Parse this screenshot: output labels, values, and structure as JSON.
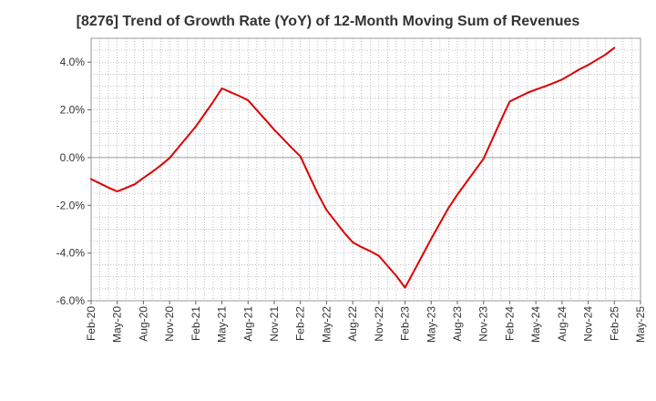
{
  "chart_data": {
    "type": "line",
    "title": "[8276]  Trend of Growth Rate (YoY) of 12-Month Moving Sum of Revenues",
    "xlabel": "",
    "ylabel": "",
    "ylim": [
      -6.0,
      5.0
    ],
    "yticks": [
      {
        "value": 4.0,
        "label": "4.0%"
      },
      {
        "value": 2.0,
        "label": "2.0%"
      },
      {
        "value": 0.0,
        "label": "0.0%"
      },
      {
        "value": -2.0,
        "label": "-2.0%"
      },
      {
        "value": -4.0,
        "label": "-4.0%"
      },
      {
        "value": -6.0,
        "label": "-6.0%"
      }
    ],
    "xticks": [
      "Feb-20",
      "May-20",
      "Aug-20",
      "Nov-20",
      "Feb-21",
      "May-21",
      "Aug-21",
      "Nov-21",
      "Feb-22",
      "May-22",
      "Aug-22",
      "Nov-22",
      "Feb-23",
      "May-23",
      "Aug-23",
      "Nov-23",
      "Feb-24",
      "May-24",
      "Aug-24",
      "Nov-24",
      "Feb-25",
      "May-25"
    ],
    "grid": true,
    "series": [
      {
        "color": "#dd0000",
        "x": [
          "Feb-20",
          "Mar-20",
          "Apr-20",
          "May-20",
          "Jun-20",
          "Jul-20",
          "Aug-20",
          "Sep-20",
          "Oct-20",
          "Nov-20",
          "Dec-20",
          "Jan-21",
          "Feb-21",
          "Mar-21",
          "Apr-21",
          "May-21",
          "Jun-21",
          "Jul-21",
          "Aug-21",
          "Sep-21",
          "Oct-21",
          "Nov-21",
          "Dec-21",
          "Jan-22",
          "Feb-22",
          "Mar-22",
          "Apr-22",
          "May-22",
          "Jun-22",
          "Jul-22",
          "Aug-22",
          "Sep-22",
          "Oct-22",
          "Nov-22",
          "Dec-22",
          "Jan-23",
          "Feb-23",
          "Mar-23",
          "Apr-23",
          "May-23",
          "Jun-23",
          "Jul-23",
          "Aug-23",
          "Sep-23",
          "Oct-23",
          "Nov-23",
          "Dec-23",
          "Jan-24",
          "Feb-24",
          "Mar-24",
          "Apr-24",
          "May-24",
          "Jun-24",
          "Jul-24",
          "Aug-24",
          "Sep-24",
          "Oct-24",
          "Nov-24",
          "Dec-24",
          "Jan-25",
          "Feb-25"
        ],
        "values": [
          -0.9,
          -1.08,
          -1.26,
          -1.42,
          -1.27,
          -1.12,
          -0.85,
          -0.6,
          -0.32,
          -0.02,
          0.42,
          0.86,
          1.3,
          1.82,
          2.34,
          2.9,
          2.74,
          2.58,
          2.4,
          1.99,
          1.58,
          1.17,
          0.79,
          0.41,
          0.05,
          -0.74,
          -1.52,
          -2.2,
          -2.67,
          -3.14,
          -3.55,
          -3.75,
          -3.92,
          -4.12,
          -4.54,
          -4.96,
          -5.45,
          -4.77,
          -4.09,
          -3.4,
          -2.75,
          -2.1,
          -1.55,
          -1.05,
          -0.55,
          -0.05,
          0.76,
          1.57,
          2.35,
          2.53,
          2.71,
          2.85,
          2.98,
          3.12,
          3.27,
          3.48,
          3.7,
          3.88,
          4.1,
          4.32,
          4.6
        ]
      }
    ]
  }
}
